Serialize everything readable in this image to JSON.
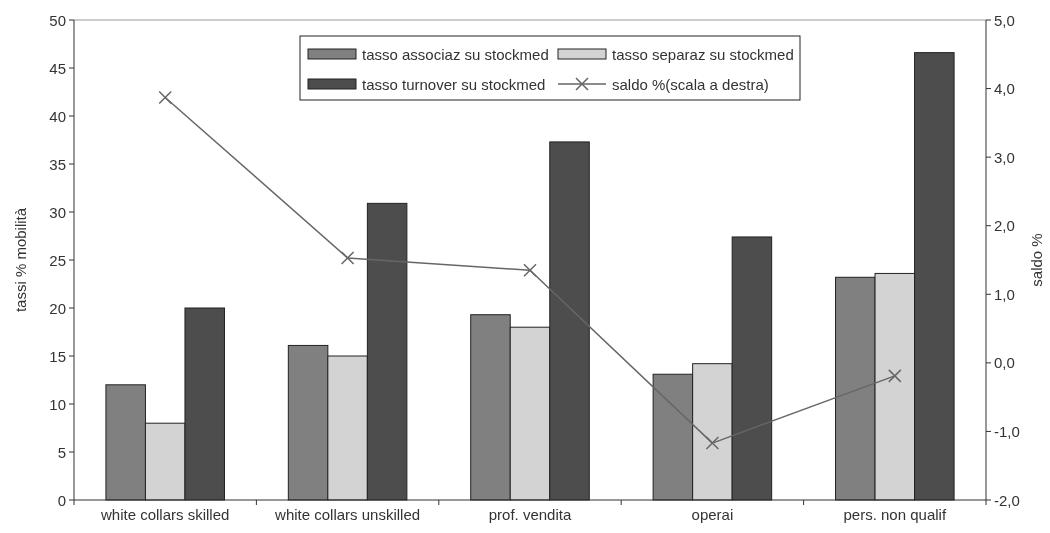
{
  "chart_data": {
    "type": "bar",
    "xlabel": null,
    "ylabel": "tassi % mobilità",
    "y2label": "saldo %",
    "categories": [
      "white collars skilled",
      "white collars unskilled",
      "prof. vendita",
      "operai",
      "pers. non qualif"
    ],
    "series": [
      {
        "name": "tasso associaz su stockmed",
        "color": "#808080",
        "values": [
          12.0,
          16.1,
          19.3,
          13.1,
          23.2
        ]
      },
      {
        "name": "tasso separaz su stockmed",
        "color": "#d3d3d3",
        "values": [
          8.0,
          15.0,
          18.0,
          14.2,
          23.6
        ]
      },
      {
        "name": "tasso turnover su stockmed",
        "color": "#4d4d4d",
        "values": [
          20.0,
          30.9,
          37.3,
          27.4,
          46.6
        ]
      },
      {
        "name": "saldo %(scala a destra)",
        "color": "#666666",
        "type": "line",
        "axis": "y2",
        "marker": "cross",
        "values": [
          3.87,
          1.53,
          1.35,
          -1.17,
          -0.19
        ]
      }
    ],
    "ylim": [
      0,
      50
    ],
    "yticks": [
      0,
      5,
      10,
      15,
      20,
      25,
      30,
      35,
      40,
      45,
      50
    ],
    "y2lim": [
      -2,
      5
    ],
    "y2ticks": [
      {
        "value": -2,
        "label": "-2,0"
      },
      {
        "value": -1,
        "label": "-1,0"
      },
      {
        "value": 0,
        "label": "0,0"
      },
      {
        "value": 1,
        "label": "1,0"
      },
      {
        "value": 2,
        "label": "2,0"
      },
      {
        "value": 3,
        "label": "3,0"
      },
      {
        "value": 4,
        "label": "4,0"
      },
      {
        "value": 5,
        "label": "5,0"
      }
    ],
    "grid": false,
    "legend": "top"
  }
}
